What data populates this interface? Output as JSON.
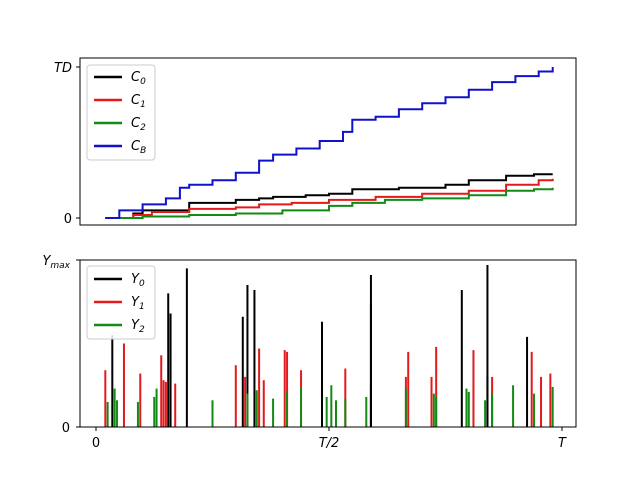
{
  "chart_data": [
    {
      "type": "line",
      "step": true,
      "x_range": [
        0,
        1
      ],
      "y_ticks": [
        {
          "value": 0,
          "label": "0"
        },
        {
          "value": 1,
          "label": "TD",
          "italic": true
        }
      ],
      "legend_position": "top-left",
      "grid": false,
      "series": [
        {
          "name": "C_0",
          "color": "#000000",
          "points": [
            [
              0.02,
              0.0
            ],
            [
              0.08,
              0.03
            ],
            [
              0.1,
              0.05
            ],
            [
              0.2,
              0.1
            ],
            [
              0.3,
              0.12
            ],
            [
              0.35,
              0.13
            ],
            [
              0.38,
              0.14
            ],
            [
              0.45,
              0.15
            ],
            [
              0.5,
              0.16
            ],
            [
              0.55,
              0.19
            ],
            [
              0.65,
              0.2
            ],
            [
              0.75,
              0.22
            ],
            [
              0.8,
              0.25
            ],
            [
              0.88,
              0.28
            ],
            [
              0.94,
              0.29
            ],
            [
              0.98,
              0.29
            ]
          ]
        },
        {
          "name": "C_1",
          "color": "#e31a1c",
          "points": [
            [
              0.02,
              0.0
            ],
            [
              0.08,
              0.02
            ],
            [
              0.12,
              0.04
            ],
            [
              0.2,
              0.06
            ],
            [
              0.3,
              0.07
            ],
            [
              0.35,
              0.09
            ],
            [
              0.42,
              0.1
            ],
            [
              0.5,
              0.12
            ],
            [
              0.55,
              0.12
            ],
            [
              0.6,
              0.14
            ],
            [
              0.7,
              0.16
            ],
            [
              0.8,
              0.18
            ],
            [
              0.88,
              0.22
            ],
            [
              0.95,
              0.25
            ],
            [
              0.98,
              0.26
            ]
          ]
        },
        {
          "name": "C_2",
          "color": "#138a13",
          "points": [
            [
              0.02,
              0.0
            ],
            [
              0.1,
              0.01
            ],
            [
              0.2,
              0.02
            ],
            [
              0.3,
              0.03
            ],
            [
              0.4,
              0.05
            ],
            [
              0.5,
              0.08
            ],
            [
              0.55,
              0.1
            ],
            [
              0.62,
              0.12
            ],
            [
              0.7,
              0.13
            ],
            [
              0.8,
              0.15
            ],
            [
              0.88,
              0.18
            ],
            [
              0.94,
              0.19
            ],
            [
              0.98,
              0.2
            ]
          ]
        },
        {
          "name": "C_B",
          "color": "#1111cc",
          "points": [
            [
              0.02,
              0.0
            ],
            [
              0.05,
              0.05
            ],
            [
              0.1,
              0.09
            ],
            [
              0.15,
              0.13
            ],
            [
              0.18,
              0.2
            ],
            [
              0.2,
              0.22
            ],
            [
              0.25,
              0.25
            ],
            [
              0.3,
              0.3
            ],
            [
              0.35,
              0.38
            ],
            [
              0.38,
              0.42
            ],
            [
              0.43,
              0.46
            ],
            [
              0.48,
              0.51
            ],
            [
              0.53,
              0.57
            ],
            [
              0.55,
              0.65
            ],
            [
              0.6,
              0.67
            ],
            [
              0.65,
              0.72
            ],
            [
              0.7,
              0.76
            ],
            [
              0.75,
              0.8
            ],
            [
              0.8,
              0.85
            ],
            [
              0.85,
              0.9
            ],
            [
              0.9,
              0.94
            ],
            [
              0.95,
              0.97
            ],
            [
              0.98,
              1.0
            ]
          ]
        }
      ]
    },
    {
      "type": "bar",
      "x_range": [
        0,
        1
      ],
      "y_range": [
        0,
        1
      ],
      "x_ticks": [
        {
          "value": 0,
          "label": "0"
        },
        {
          "value": 0.5,
          "label": "T/2",
          "italic": true
        },
        {
          "value": 1,
          "label": "T",
          "italic": true
        }
      ],
      "y_ticks": [
        {
          "value": 0,
          "label": "0"
        },
        {
          "value": 1,
          "label": "Y_max",
          "italic": true
        }
      ],
      "legend_position": "top-left",
      "grid": false,
      "series": [
        {
          "name": "Y_0",
          "color": "#000000",
          "events": [
            [
              0.035,
              0.55
            ],
            [
              0.155,
              0.8
            ],
            [
              0.16,
              0.68
            ],
            [
              0.195,
              0.95
            ],
            [
              0.315,
              0.66
            ],
            [
              0.325,
              0.85
            ],
            [
              0.34,
              0.82
            ],
            [
              0.485,
              0.63
            ],
            [
              0.59,
              0.91
            ],
            [
              0.59,
              0.74
            ],
            [
              0.59,
              0.26
            ],
            [
              0.785,
              0.82
            ],
            [
              0.84,
              0.97
            ],
            [
              0.84,
              0.3
            ],
            [
              0.925,
              0.54
            ]
          ]
        },
        {
          "name": "Y_1",
          "color": "#e31a1c",
          "events": [
            [
              0.02,
              0.34
            ],
            [
              0.06,
              0.5
            ],
            [
              0.095,
              0.32
            ],
            [
              0.14,
              0.43
            ],
            [
              0.145,
              0.28
            ],
            [
              0.15,
              0.27
            ],
            [
              0.17,
              0.26
            ],
            [
              0.3,
              0.37
            ],
            [
              0.32,
              0.3
            ],
            [
              0.35,
              0.47
            ],
            [
              0.36,
              0.28
            ],
            [
              0.405,
              0.46
            ],
            [
              0.41,
              0.45
            ],
            [
              0.44,
              0.34
            ],
            [
              0.535,
              0.35
            ],
            [
              0.665,
              0.3
            ],
            [
              0.67,
              0.45
            ],
            [
              0.72,
              0.3
            ],
            [
              0.73,
              0.48
            ],
            [
              0.81,
              0.46
            ],
            [
              0.85,
              0.3
            ],
            [
              0.935,
              0.45
            ],
            [
              0.955,
              0.3
            ],
            [
              0.975,
              0.32
            ]
          ]
        },
        {
          "name": "Y_2",
          "color": "#138a13",
          "events": [
            [
              0.025,
              0.15
            ],
            [
              0.04,
              0.23
            ],
            [
              0.045,
              0.16
            ],
            [
              0.09,
              0.15
            ],
            [
              0.125,
              0.18
            ],
            [
              0.13,
              0.23
            ],
            [
              0.25,
              0.16
            ],
            [
              0.325,
              0.2
            ],
            [
              0.345,
              0.22
            ],
            [
              0.38,
              0.17
            ],
            [
              0.41,
              0.21
            ],
            [
              0.44,
              0.24
            ],
            [
              0.495,
              0.18
            ],
            [
              0.505,
              0.25
            ],
            [
              0.515,
              0.16
            ],
            [
              0.535,
              0.17
            ],
            [
              0.58,
              0.18
            ],
            [
              0.665,
              0.23
            ],
            [
              0.725,
              0.2
            ],
            [
              0.73,
              0.18
            ],
            [
              0.795,
              0.23
            ],
            [
              0.8,
              0.21
            ],
            [
              0.835,
              0.16
            ],
            [
              0.85,
              0.2
            ],
            [
              0.895,
              0.25
            ],
            [
              0.94,
              0.2
            ],
            [
              0.98,
              0.24
            ]
          ]
        }
      ]
    }
  ]
}
